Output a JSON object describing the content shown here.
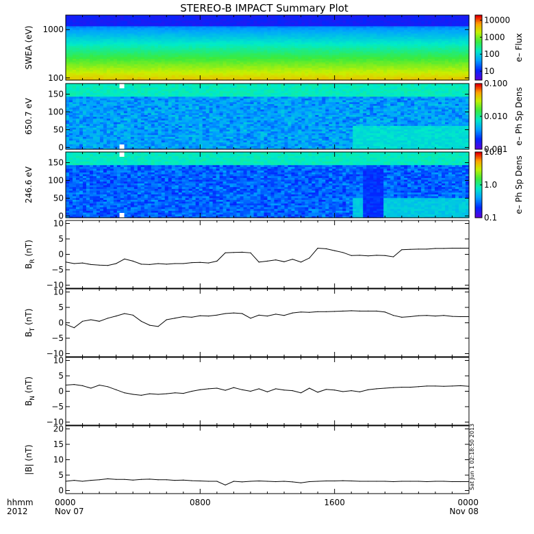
{
  "title": "STEREO-B IMPACT Summary Plot",
  "time_axis": {
    "row_label": "hhmm",
    "year": "2012",
    "ticks": [
      {
        "hour": 0,
        "time": "0000",
        "date": "Nov 07"
      },
      {
        "hour": 8,
        "time": "0800",
        "date": ""
      },
      {
        "hour": 16,
        "time": "1600",
        "date": ""
      },
      {
        "hour": 24,
        "time": "0000",
        "date": "Nov 08"
      }
    ]
  },
  "stamp": "Sat Jun 1 02:18:50 2013",
  "chart_data": [
    {
      "type": "heatmap",
      "id": "swea",
      "ylabel": "SWEA (eV)",
      "ylim": [
        90,
        2000
      ],
      "yscale": "log",
      "yticks": [
        {
          "v": 100,
          "t": "100"
        },
        {
          "v": 1000,
          "t": "1000"
        }
      ],
      "colorbar": {
        "label": "e– Flux",
        "scale": "log",
        "range": [
          3,
          20000
        ],
        "ticks": [
          {
            "v": 10,
            "t": "10"
          },
          {
            "v": 100,
            "t": "100"
          },
          {
            "v": 1000,
            "t": "1000"
          },
          {
            "v": 10000,
            "t": "10000"
          }
        ]
      }
    },
    {
      "type": "heatmap",
      "id": "pad650",
      "ylabel": "650.7 eV",
      "ylim": [
        -5,
        180
      ],
      "yticks": [
        {
          "v": 0,
          "t": "0"
        },
        {
          "v": 50,
          "t": "50"
        },
        {
          "v": 100,
          "t": "100"
        },
        {
          "v": 150,
          "t": "150"
        }
      ],
      "colorbar": {
        "label": "e– Ph Sp Dens",
        "scale": "log",
        "range": [
          0.001,
          0.1
        ],
        "ticks": [
          {
            "v": 0.001,
            "t": "0.001"
          },
          {
            "v": 0.01,
            "t": "0.010"
          },
          {
            "v": 0.1,
            "t": "0.100"
          }
        ]
      }
    },
    {
      "type": "heatmap",
      "id": "pad246",
      "ylabel": "246.6 eV",
      "ylim": [
        -5,
        180
      ],
      "yticks": [
        {
          "v": 0,
          "t": "0"
        },
        {
          "v": 50,
          "t": "50"
        },
        {
          "v": 100,
          "t": "100"
        },
        {
          "v": 150,
          "t": "150"
        }
      ],
      "colorbar": {
        "label": "e– Ph Sp Dens",
        "scale": "log",
        "range": [
          0.1,
          10
        ],
        "ticks": [
          {
            "v": 0.1,
            "t": "0.1"
          },
          {
            "v": 1,
            "t": "1.0"
          },
          {
            "v": 10,
            "t": "10.0"
          }
        ]
      }
    },
    {
      "type": "line",
      "id": "br",
      "ylabel": "B_R (nT)",
      "ylim": [
        -11,
        11
      ],
      "yticks": [
        {
          "v": -10,
          "t": "−10"
        },
        {
          "v": -5,
          "t": "−5"
        },
        {
          "v": 0,
          "t": "0"
        },
        {
          "v": 5,
          "t": "5"
        },
        {
          "v": 10,
          "t": "10"
        }
      ],
      "x": [
        0,
        0.5,
        1,
        1.5,
        2,
        2.5,
        3,
        3.5,
        4,
        4.5,
        5,
        5.5,
        6,
        6.5,
        7,
        7.5,
        8,
        8.5,
        9,
        9.5,
        10,
        10.5,
        11,
        11.5,
        12,
        12.5,
        13,
        13.5,
        14,
        14.5,
        15,
        15.5,
        16,
        16.5,
        17,
        17.5,
        18,
        18.5,
        19,
        19.5,
        20,
        20.5,
        21,
        21.5,
        22,
        22.5,
        23,
        23.5,
        24
      ],
      "y": [
        -2.5,
        -3.0,
        -2.8,
        -3.3,
        -3.5,
        -3.6,
        -3.0,
        -1.5,
        -2.2,
        -3.2,
        -3.3,
        -3.0,
        -3.2,
        -3.0,
        -3.0,
        -2.7,
        -2.6,
        -2.8,
        -2.2,
        0.5,
        0.6,
        0.7,
        0.5,
        -2.5,
        -2.2,
        -1.8,
        -2.4,
        -1.6,
        -2.5,
        -1.2,
        2.0,
        1.8,
        1.2,
        0.6,
        -0.4,
        -0.3,
        -0.5,
        -0.3,
        -0.4,
        -0.8,
        1.5,
        1.6,
        1.7,
        1.7,
        1.9,
        1.9,
        2.0,
        2.0,
        2.0
      ]
    },
    {
      "type": "line",
      "id": "bt",
      "ylabel": "B_T (nT)",
      "ylim": [
        -11,
        11
      ],
      "yticks": [
        {
          "v": -10,
          "t": "−10"
        },
        {
          "v": -5,
          "t": "−5"
        },
        {
          "v": 0,
          "t": "0"
        },
        {
          "v": 5,
          "t": "5"
        },
        {
          "v": 10,
          "t": "10"
        }
      ],
      "x": [
        0,
        0.5,
        1,
        1.5,
        2,
        2.5,
        3,
        3.5,
        4,
        4.5,
        5,
        5.5,
        6,
        6.5,
        7,
        7.5,
        8,
        8.5,
        9,
        9.5,
        10,
        10.5,
        11,
        11.5,
        12,
        12.5,
        13,
        13.5,
        14,
        14.5,
        15,
        15.5,
        16,
        16.5,
        17,
        17.5,
        18,
        18.5,
        19,
        19.5,
        20,
        20.5,
        21,
        21.5,
        22,
        22.5,
        23,
        23.5,
        24
      ],
      "y": [
        -0.5,
        -1.6,
        0.5,
        1.0,
        0.5,
        1.5,
        2.2,
        3.0,
        2.5,
        0.5,
        -0.8,
        -1.2,
        1.0,
        1.5,
        2.0,
        1.8,
        2.3,
        2.2,
        2.5,
        3.0,
        3.2,
        3.0,
        1.5,
        2.5,
        2.2,
        2.8,
        2.4,
        3.2,
        3.5,
        3.4,
        3.6,
        3.6,
        3.7,
        3.8,
        3.9,
        3.8,
        3.8,
        3.8,
        3.5,
        2.4,
        1.8,
        2.0,
        2.3,
        2.4,
        2.2,
        2.4,
        2.1,
        2.0,
        2.0
      ]
    },
    {
      "type": "line",
      "id": "bn",
      "ylabel": "B_N (nT)",
      "ylim": [
        -11,
        11
      ],
      "yticks": [
        {
          "v": -10,
          "t": "−10"
        },
        {
          "v": -5,
          "t": "−5"
        },
        {
          "v": 0,
          "t": "0"
        },
        {
          "v": 5,
          "t": "5"
        },
        {
          "v": 10,
          "t": "10"
        }
      ],
      "x": [
        0,
        0.5,
        1,
        1.5,
        2,
        2.5,
        3,
        3.5,
        4,
        4.5,
        5,
        5.5,
        6,
        6.5,
        7,
        7.5,
        8,
        8.5,
        9,
        9.5,
        10,
        10.5,
        11,
        11.5,
        12,
        12.5,
        13,
        13.5,
        14,
        14.5,
        15,
        15.5,
        16,
        16.5,
        17,
        17.5,
        18,
        18.5,
        19,
        19.5,
        20,
        20.5,
        21,
        21.5,
        22,
        22.5,
        23,
        23.5,
        24
      ],
      "y": [
        2.0,
        2.2,
        1.8,
        1.0,
        2.0,
        1.5,
        0.5,
        -0.5,
        -1.0,
        -1.3,
        -0.8,
        -1.0,
        -0.8,
        -0.5,
        -0.7,
        0.0,
        0.5,
        0.8,
        1.0,
        0.3,
        1.2,
        0.5,
        0.0,
        0.8,
        -0.2,
        0.8,
        0.4,
        0.2,
        -0.5,
        1.0,
        -0.3,
        0.6,
        0.4,
        -0.1,
        0.2,
        -0.2,
        0.5,
        0.8,
        1.0,
        1.2,
        1.3,
        1.3,
        1.5,
        1.7,
        1.7,
        1.6,
        1.7,
        1.8,
        1.6
      ]
    },
    {
      "type": "line",
      "id": "bmag",
      "ylabel": "|B| (nT)",
      "ylim": [
        -1,
        21
      ],
      "yticks": [
        {
          "v": 0,
          "t": "0"
        },
        {
          "v": 5,
          "t": "5"
        },
        {
          "v": 10,
          "t": "10"
        },
        {
          "v": 15,
          "t": "15"
        },
        {
          "v": 20,
          "t": "20"
        }
      ],
      "x": [
        0,
        0.5,
        1,
        1.5,
        2,
        2.5,
        3,
        3.5,
        4,
        4.5,
        5,
        5.5,
        6,
        6.5,
        7,
        7.5,
        8,
        8.5,
        9,
        9.5,
        10,
        10.5,
        11,
        11.5,
        12,
        12.5,
        13,
        13.5,
        14,
        14.5,
        15,
        15.5,
        16,
        16.5,
        17,
        17.5,
        18,
        18.5,
        19,
        19.5,
        20,
        20.5,
        21,
        21.5,
        22,
        22.5,
        23,
        23.5,
        24
      ],
      "y": [
        3.0,
        3.3,
        3.0,
        3.3,
        3.5,
        3.8,
        3.6,
        3.6,
        3.4,
        3.6,
        3.7,
        3.5,
        3.5,
        3.3,
        3.4,
        3.2,
        3.1,
        3.0,
        3.0,
        1.8,
        3.0,
        2.8,
        3.0,
        3.1,
        3.0,
        2.9,
        3.0,
        2.8,
        2.5,
        2.9,
        3.0,
        3.1,
        3.1,
        3.2,
        3.1,
        3.0,
        3.0,
        3.0,
        3.0,
        2.9,
        3.0,
        3.0,
        3.0,
        2.9,
        3.0,
        3.0,
        2.9,
        2.9,
        2.9
      ]
    }
  ]
}
